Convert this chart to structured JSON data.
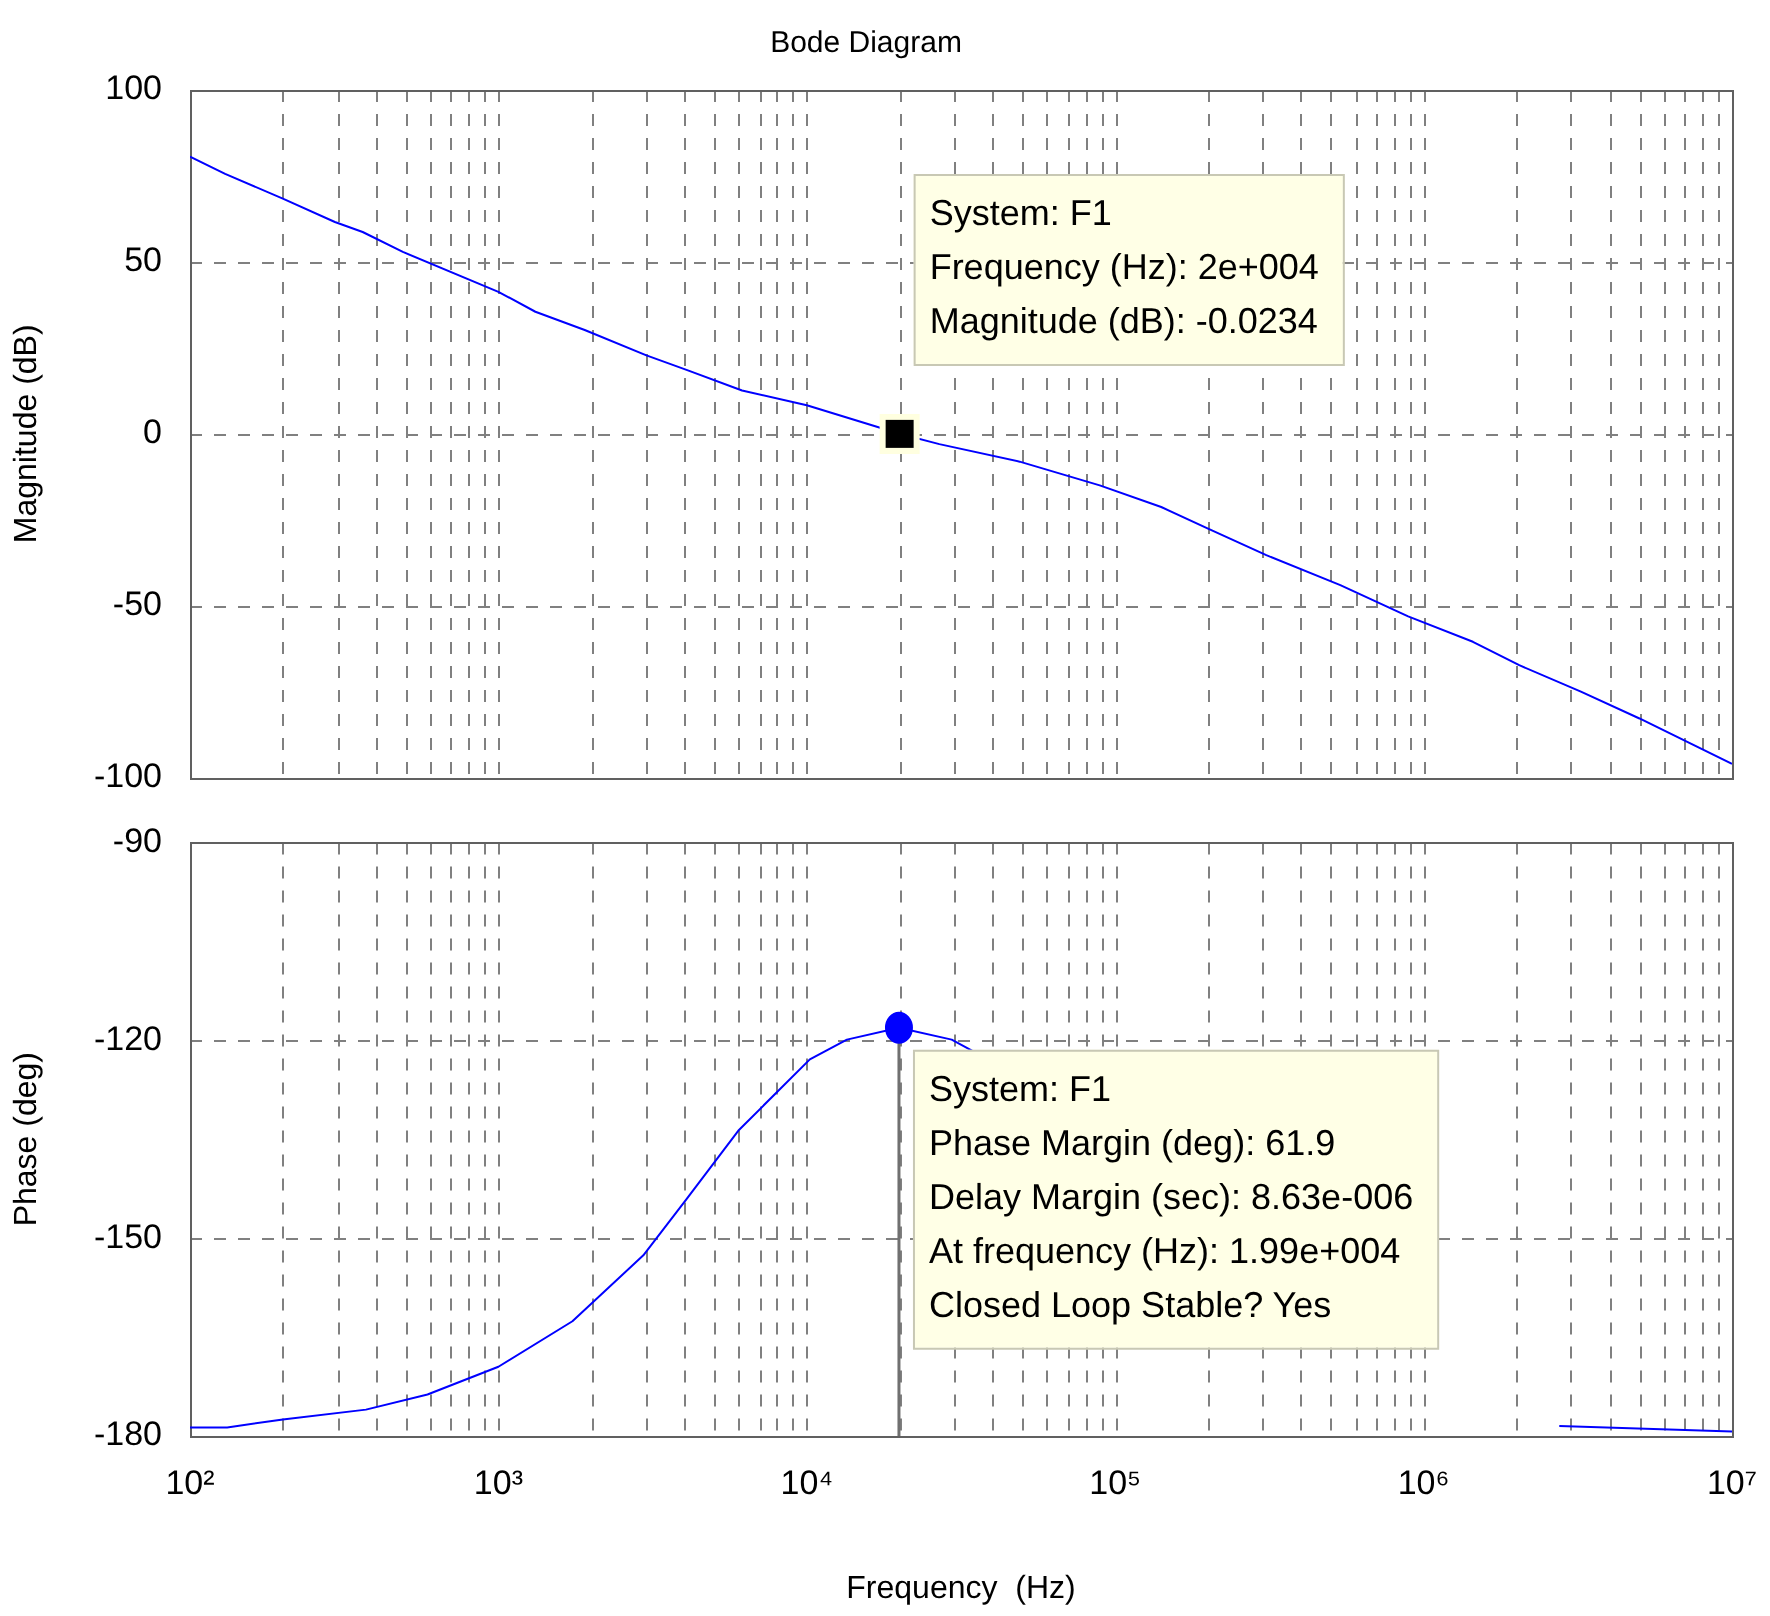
{
  "chart_data": [
    {
      "type": "line",
      "title": "Bode Diagram",
      "ylabel": "Magnitude (dB)",
      "xlim": [
        100,
        10000000
      ],
      "log": "x",
      "grid": true,
      "tick_labels": "y",
      "xticks": [
        {
          "value": 100,
          "label": null
        },
        {
          "value": 1000,
          "label": null
        },
        {
          "value": 10000,
          "label": null
        },
        {
          "value": 100000,
          "label": null
        },
        {
          "value": 1000000,
          "label": null
        },
        {
          "value": 10000000,
          "label": null
        }
      ],
      "ylim": [
        -100,
        100
      ],
      "yticks": [
        -100,
        -50,
        0,
        50,
        100
      ],
      "x": [
        100,
        130,
        200,
        295,
        363,
        490,
        1000,
        1318,
        1905,
        3020,
        4074,
        6166,
        10000,
        20000,
        26900,
        49000,
        89100,
        141000,
        200000,
        309000,
        537000,
        891000,
        1445000,
        2042000,
        3236000,
        5012000,
        10000000
      ],
      "series": [
        {
          "color": "#0000ff",
          "values": [
            80.6,
            75.6,
            68.4,
            61.6,
            58.7,
            52.9,
            41.3,
            35.5,
            30.2,
            22.8,
            18.6,
            12.6,
            8.3,
            0,
            -3,
            -8.1,
            -15,
            -21.3,
            -27.6,
            -35.3,
            -44,
            -53.1,
            -60.5,
            -67.3,
            -75,
            -82.8,
            -96
          ]
        }
      ],
      "annotations": [
        {
          "text": "System: F1\nFrequency (Hz): 2e+004\nMagnitude (dB): -0.0234",
          "x": 20000,
          "y": -0.0234
        }
      ]
    },
    {
      "type": "line",
      "ylabel": "Phase (deg)",
      "xlabel": "Frequency  (Hz)",
      "xlim": [
        100,
        10000000
      ],
      "log": "x",
      "grid": true,
      "xticks": [
        {
          "value": 100,
          "label": "10²"
        },
        {
          "value": 1000,
          "label": "10³"
        },
        {
          "value": 10000,
          "label": "10⁴"
        },
        {
          "value": 100000,
          "label": "10⁵"
        },
        {
          "value": 1000000,
          "label": "10⁶"
        },
        {
          "value": 10000000,
          "label": "10⁷"
        }
      ],
      "ylim": [
        -180,
        -90
      ],
      "yticks": [
        -180,
        -150,
        -120,
        -90
      ],
      "ref_lines": [
        {
          "axis": "x",
          "value": 19900,
          "color": "#707070"
        }
      ],
      "x": [
        100,
        132,
        200,
        372,
        589,
        1000,
        1738,
        2951,
        4074,
        6026,
        10230,
        13490,
        19900,
        29500,
        34670,
        300000,
        2754000,
        10000000
      ],
      "series": [
        {
          "color": "#0000ff",
          "values": [
            -178.7,
            -178.7,
            -177.5,
            -176,
            -173.7,
            -169.5,
            -162.6,
            -152.6,
            -144.1,
            -133.6,
            -122.9,
            -119.9,
            -118.1,
            -119.9,
            -121.7,
            null,
            -178.5,
            -179.3
          ]
        }
      ],
      "annotations": [
        {
          "text": "System: F1\nPhase Margin (deg): 61.9\nDelay Margin (sec): 8.63e-006\nAt frequency (Hz): 1.99e+004\nClosed Loop Stable? Yes",
          "x": 19900,
          "y": -118.1
        }
      ]
    }
  ]
}
